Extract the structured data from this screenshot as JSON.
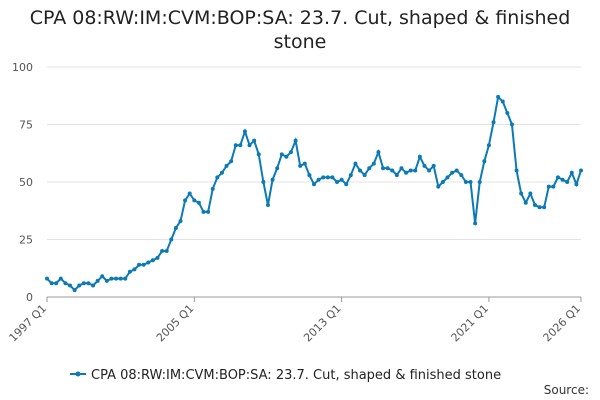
{
  "chart_data": {
    "type": "line",
    "title": "CPA 08:RW:IM:CVM:BOP:SA: 23.7. Cut, shaped & finished stone",
    "source": "Source:",
    "categories": [
      "1997 Q1",
      null,
      null,
      null,
      null,
      null,
      null,
      null,
      null,
      null,
      null,
      null,
      null,
      null,
      null,
      null,
      null,
      null,
      null,
      null,
      null,
      null,
      null,
      null,
      null,
      null,
      null,
      null,
      null,
      null,
      null,
      null,
      "2005 Q1",
      null,
      null,
      null,
      null,
      null,
      null,
      null,
      null,
      null,
      null,
      null,
      null,
      null,
      null,
      null,
      null,
      null,
      null,
      null,
      null,
      null,
      null,
      null,
      null,
      null,
      null,
      null,
      null,
      null,
      null,
      null,
      "2013 Q1",
      null,
      null,
      null,
      null,
      null,
      null,
      null,
      null,
      null,
      null,
      null,
      null,
      null,
      null,
      null,
      null,
      null,
      null,
      null,
      null,
      null,
      null,
      null,
      null,
      null,
      null,
      null,
      null,
      null,
      null,
      null,
      "2021 Q1",
      null,
      null,
      null,
      null,
      null,
      null,
      null,
      null,
      null,
      null,
      null,
      null,
      null,
      null,
      null,
      null,
      null,
      null,
      null,
      "2026 Q1"
    ],
    "series": [
      {
        "name": "CPA 08:RW:IM:CVM:BOP:SA: 23.7. Cut, shaped & finished stone",
        "color": "#0b7ab5",
        "values": [
          8,
          6,
          6,
          8,
          6,
          5,
          3,
          5,
          6,
          6,
          5,
          7,
          9,
          7,
          8,
          8,
          8,
          8,
          11,
          12,
          14,
          14,
          15,
          16,
          17,
          20,
          20,
          25,
          30,
          33,
          42,
          45,
          42,
          41,
          37,
          37,
          47,
          52,
          54,
          57,
          59,
          66,
          66,
          72,
          66,
          68,
          62,
          50,
          40,
          51,
          56,
          62,
          61,
          63,
          68,
          57,
          58,
          53,
          49,
          51,
          52,
          52,
          52,
          50,
          51,
          49,
          53,
          58,
          55,
          53,
          56,
          58,
          63,
          56,
          56,
          55,
          53,
          56,
          54,
          55,
          55,
          61,
          57,
          55,
          57,
          48,
          50,
          52,
          54,
          55,
          53,
          50,
          50,
          32,
          50,
          59,
          66,
          76,
          87,
          85,
          80,
          75,
          55,
          45,
          41,
          45,
          40,
          39,
          39,
          48,
          48,
          52,
          51,
          50,
          54,
          49,
          55
        ]
      }
    ],
    "ylim": [
      0,
      100
    ],
    "yticks": [
      0,
      25,
      50,
      75,
      100
    ],
    "grid": true
  }
}
